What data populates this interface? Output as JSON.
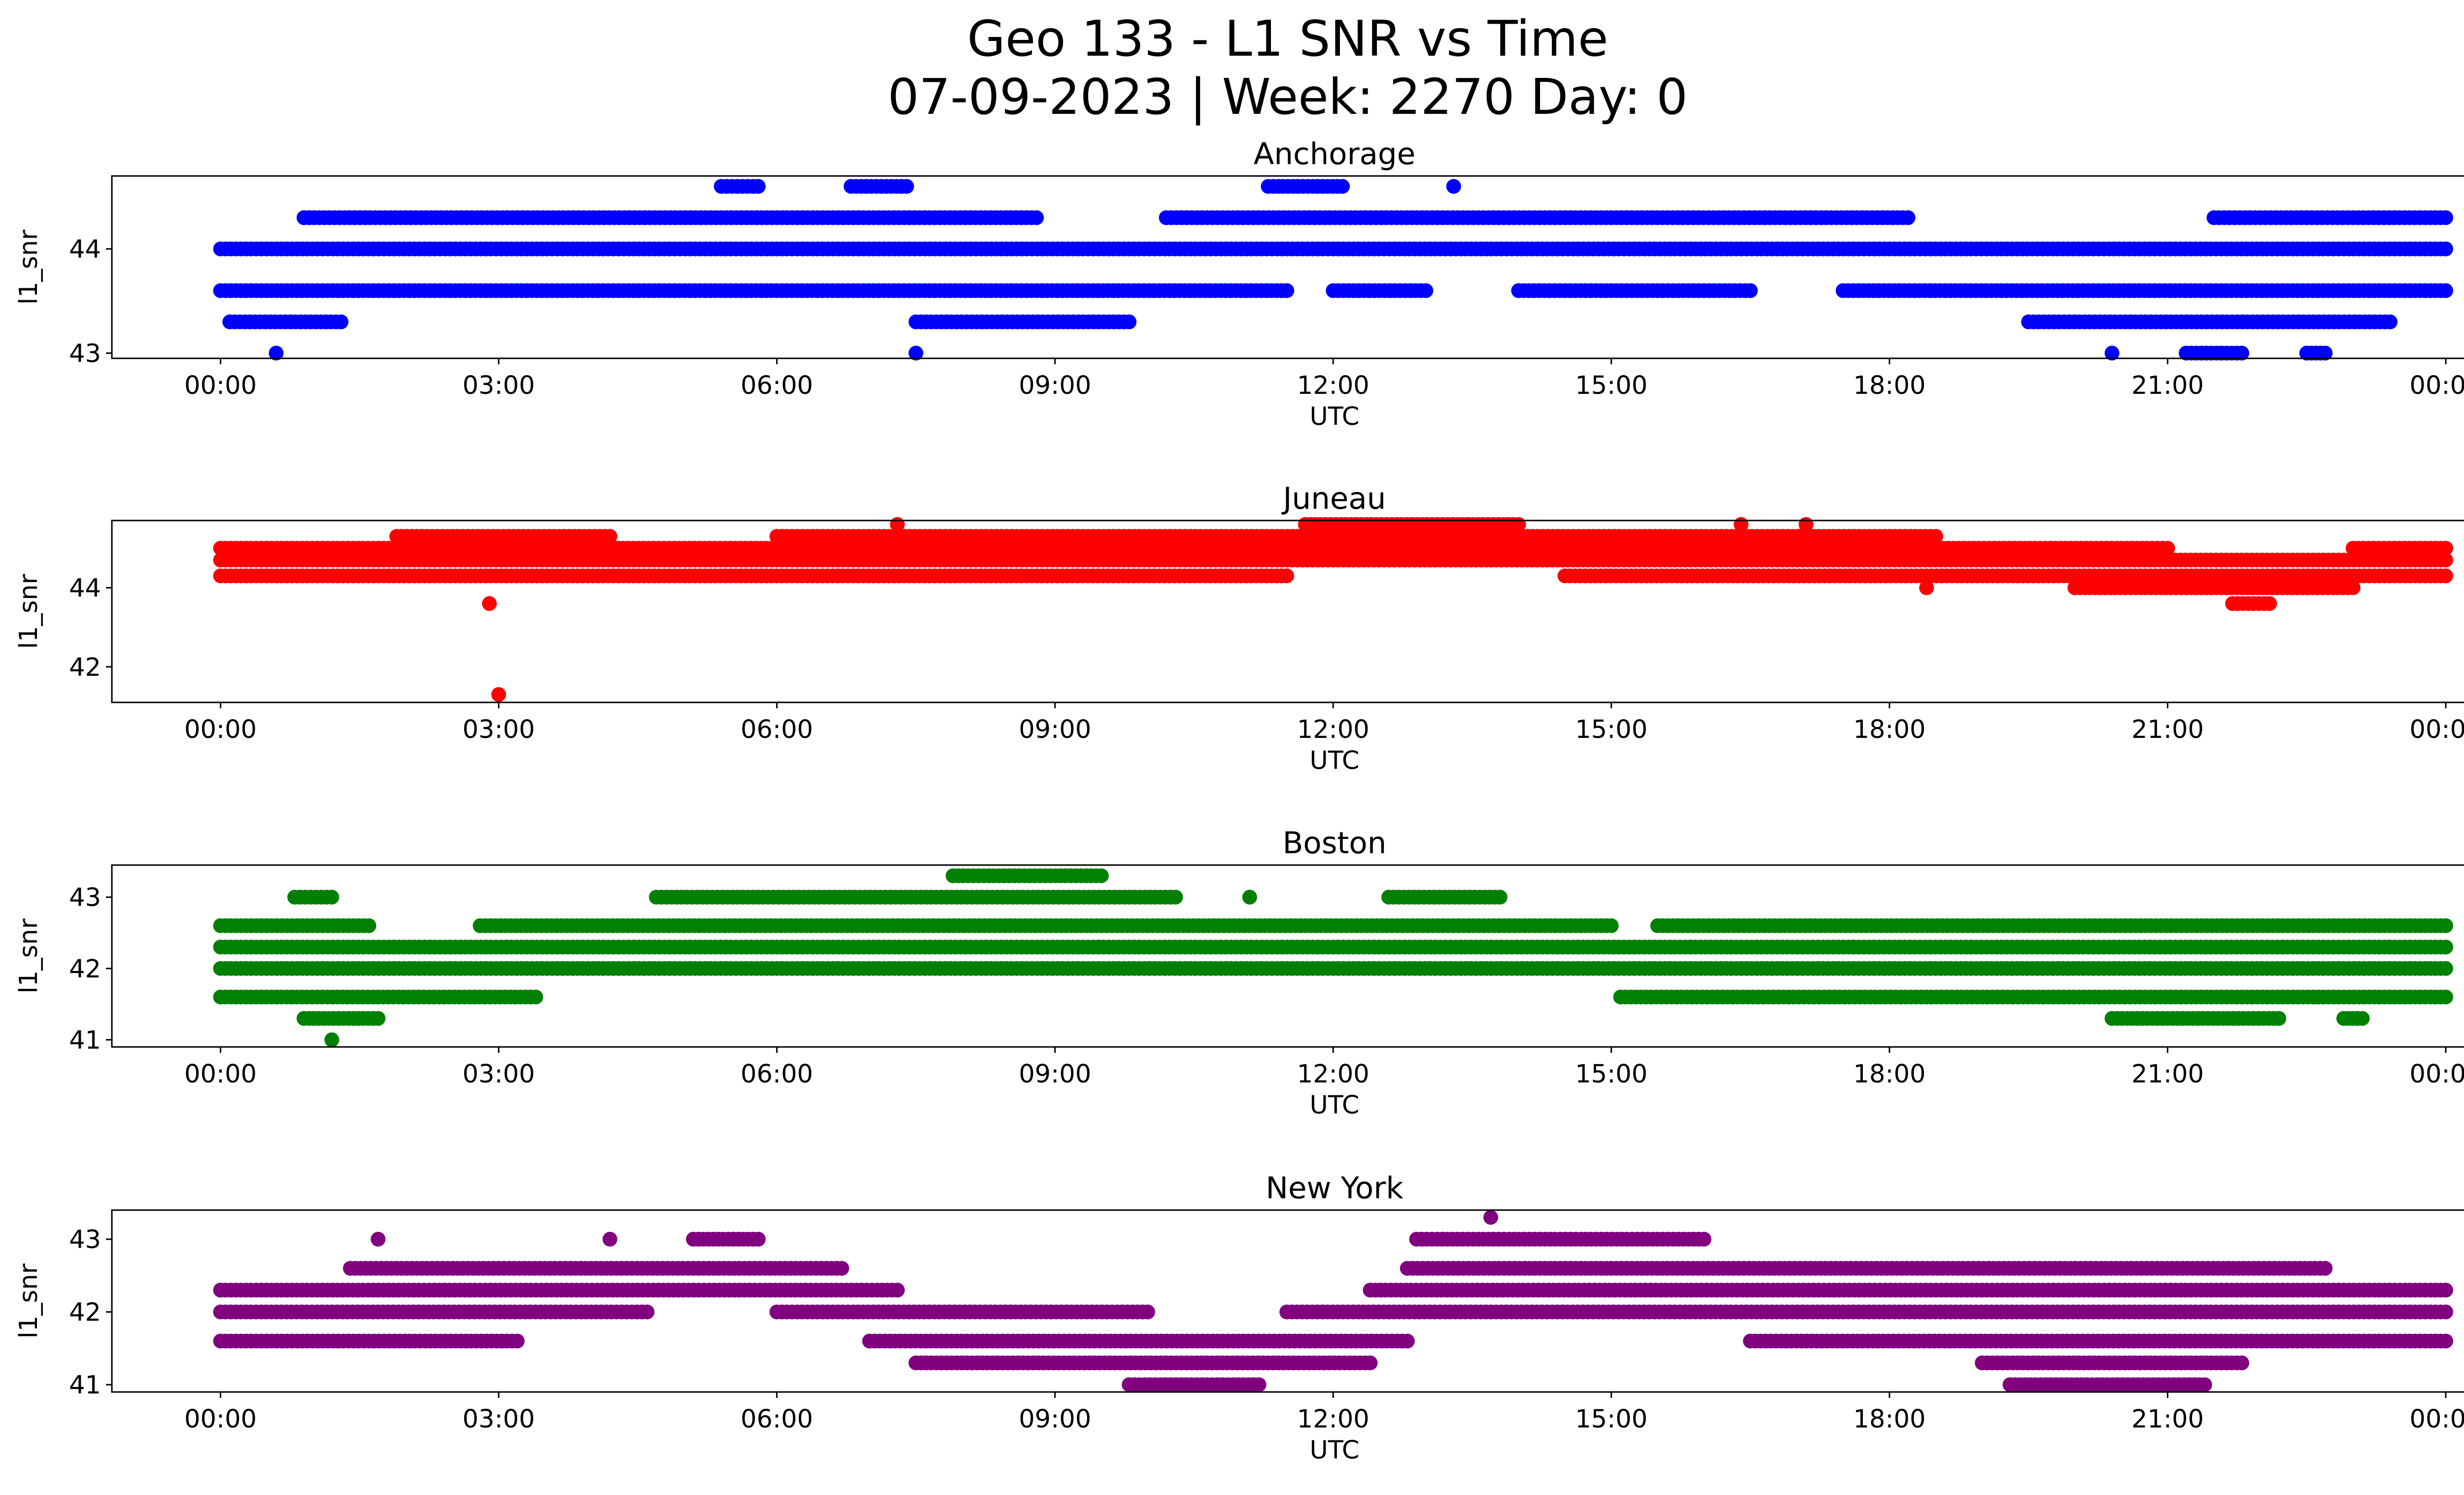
{
  "title_line1": "Geo 133 - L1 SNR vs Time",
  "title_line2": "07-09-2023 | Week: 2270 Day: 0",
  "chart_data": [
    {
      "type": "scatter",
      "title": "Anchorage",
      "color": "#0000ff",
      "xlabel": "UTC",
      "ylabel": "l1_snr",
      "xlim": [
        "00:00",
        "24:00"
      ],
      "ylim": [
        42.95,
        44.7
      ],
      "yticks": [
        43,
        44
      ],
      "xticks": [
        "00:00",
        "03:00",
        "06:00",
        "09:00",
        "12:00",
        "15:00",
        "18:00",
        "21:00",
        "00:00"
      ],
      "levels": [
        {
          "y": 44.0,
          "x": [
            [
              0.0,
              24.0
            ]
          ]
        },
        {
          "y": 43.6,
          "x": [
            [
              0.0,
              11.5
            ],
            [
              12.0,
              13.0
            ],
            [
              14.0,
              16.5
            ],
            [
              17.5,
              24.0
            ]
          ]
        },
        {
          "y": 44.3,
          "x": [
            [
              0.9,
              8.8
            ],
            [
              10.2,
              18.2
            ],
            [
              21.5,
              24.0
            ]
          ]
        },
        {
          "y": 43.3,
          "x": [
            [
              0.1,
              1.3
            ],
            [
              7.5,
              9.8
            ],
            [
              19.5,
              23.4
            ]
          ]
        },
        {
          "y": 44.6,
          "x": [
            [
              5.4,
              5.8
            ],
            [
              6.8,
              7.4
            ],
            [
              11.3,
              12.1
            ],
            [
              13.3,
              13.3
            ]
          ]
        },
        {
          "y": 43.0,
          "x": [
            [
              0.6,
              0.6
            ],
            [
              7.5,
              7.5
            ],
            [
              20.4,
              20.4
            ],
            [
              21.2,
              21.8
            ],
            [
              22.5,
              22.7
            ]
          ]
        }
      ]
    },
    {
      "type": "scatter",
      "title": "Juneau",
      "color": "#ff0000",
      "xlabel": "UTC",
      "ylabel": "l1_snr",
      "xlim": [
        "00:00",
        "24:00"
      ],
      "ylim": [
        41.1,
        45.7
      ],
      "yticks": [
        42,
        44
      ],
      "xticks": [
        "00:00",
        "03:00",
        "06:00",
        "09:00",
        "12:00",
        "15:00",
        "18:00",
        "21:00",
        "00:00"
      ],
      "levels": [
        {
          "y": 44.7,
          "x": [
            [
              0.0,
              24.0
            ]
          ]
        },
        {
          "y": 45.0,
          "x": [
            [
              0.0,
              21.0
            ],
            [
              23.0,
              24.0
            ]
          ]
        },
        {
          "y": 44.3,
          "x": [
            [
              0.0,
              11.5
            ],
            [
              14.5,
              24.0
            ]
          ]
        },
        {
          "y": 45.3,
          "x": [
            [
              1.9,
              4.2
            ],
            [
              6.0,
              18.5
            ]
          ]
        },
        {
          "y": 45.6,
          "x": [
            [
              7.3,
              7.3
            ],
            [
              11.7,
              14.0
            ],
            [
              16.4,
              16.4
            ],
            [
              17.1,
              17.1
            ]
          ]
        },
        {
          "y": 44.0,
          "x": [
            [
              18.4,
              18.4
            ],
            [
              20.0,
              23.0
            ]
          ]
        },
        {
          "y": 43.6,
          "x": [
            [
              2.9,
              2.9
            ],
            [
              21.7,
              22.1
            ]
          ]
        },
        {
          "y": 41.3,
          "x": [
            [
              3.0,
              3.0
            ]
          ]
        }
      ]
    },
    {
      "type": "scatter",
      "title": "Boston",
      "color": "#008000",
      "xlabel": "UTC",
      "ylabel": "l1_snr",
      "xlim": [
        "00:00",
        "24:00"
      ],
      "ylim": [
        40.9,
        43.45
      ],
      "yticks": [
        41,
        42,
        43
      ],
      "xticks": [
        "00:00",
        "03:00",
        "06:00",
        "09:00",
        "12:00",
        "15:00",
        "18:00",
        "21:00",
        "00:00"
      ],
      "levels": [
        {
          "y": 42.3,
          "x": [
            [
              0.0,
              24.0
            ]
          ]
        },
        {
          "y": 42.0,
          "x": [
            [
              0.0,
              24.0
            ]
          ]
        },
        {
          "y": 42.6,
          "x": [
            [
              0.0,
              1.6
            ],
            [
              2.8,
              15.0
            ],
            [
              15.5,
              24.0
            ]
          ]
        },
        {
          "y": 41.6,
          "x": [
            [
              0.0,
              3.4
            ],
            [
              15.1,
              24.0
            ]
          ]
        },
        {
          "y": 43.0,
          "x": [
            [
              0.8,
              1.2
            ],
            [
              4.7,
              10.3
            ],
            [
              11.1,
              11.1
            ],
            [
              12.6,
              13.8
            ]
          ]
        },
        {
          "y": 43.3,
          "x": [
            [
              7.9,
              9.5
            ]
          ]
        },
        {
          "y": 41.3,
          "x": [
            [
              0.9,
              1.7
            ],
            [
              20.4,
              22.2
            ],
            [
              22.9,
              23.1
            ]
          ]
        },
        {
          "y": 41.0,
          "x": [
            [
              1.2,
              1.2
            ]
          ]
        }
      ]
    },
    {
      "type": "scatter",
      "title": "New York",
      "color": "#800080",
      "xlabel": "UTC",
      "ylabel": "l1_snr",
      "xlim": [
        "00:00",
        "24:00"
      ],
      "ylim": [
        40.9,
        43.4
      ],
      "yticks": [
        41,
        42,
        43
      ],
      "xticks": [
        "00:00",
        "03:00",
        "06:00",
        "09:00",
        "12:00",
        "15:00",
        "18:00",
        "21:00",
        "00:00"
      ],
      "levels": [
        {
          "y": 42.3,
          "x": [
            [
              0.0,
              7.3
            ],
            [
              12.4,
              24.0
            ]
          ]
        },
        {
          "y": 42.0,
          "x": [
            [
              0.0,
              4.6
            ],
            [
              6.0,
              10.0
            ],
            [
              11.5,
              24.0
            ]
          ]
        },
        {
          "y": 41.6,
          "x": [
            [
              0.0,
              3.2
            ],
            [
              7.0,
              12.8
            ],
            [
              16.5,
              24.0
            ]
          ]
        },
        {
          "y": 42.6,
          "x": [
            [
              1.4,
              6.7
            ],
            [
              12.8,
              22.7
            ]
          ]
        },
        {
          "y": 41.3,
          "x": [
            [
              7.5,
              12.4
            ],
            [
              19.0,
              21.8
            ]
          ]
        },
        {
          "y": 43.0,
          "x": [
            [
              1.7,
              1.7
            ],
            [
              4.2,
              4.2
            ],
            [
              5.1,
              5.8
            ],
            [
              12.9,
              16.0
            ]
          ]
        },
        {
          "y": 41.0,
          "x": [
            [
              9.8,
              11.2
            ],
            [
              19.3,
              21.4
            ]
          ]
        },
        {
          "y": 43.3,
          "x": [
            [
              13.7,
              13.7
            ]
          ]
        }
      ]
    }
  ]
}
